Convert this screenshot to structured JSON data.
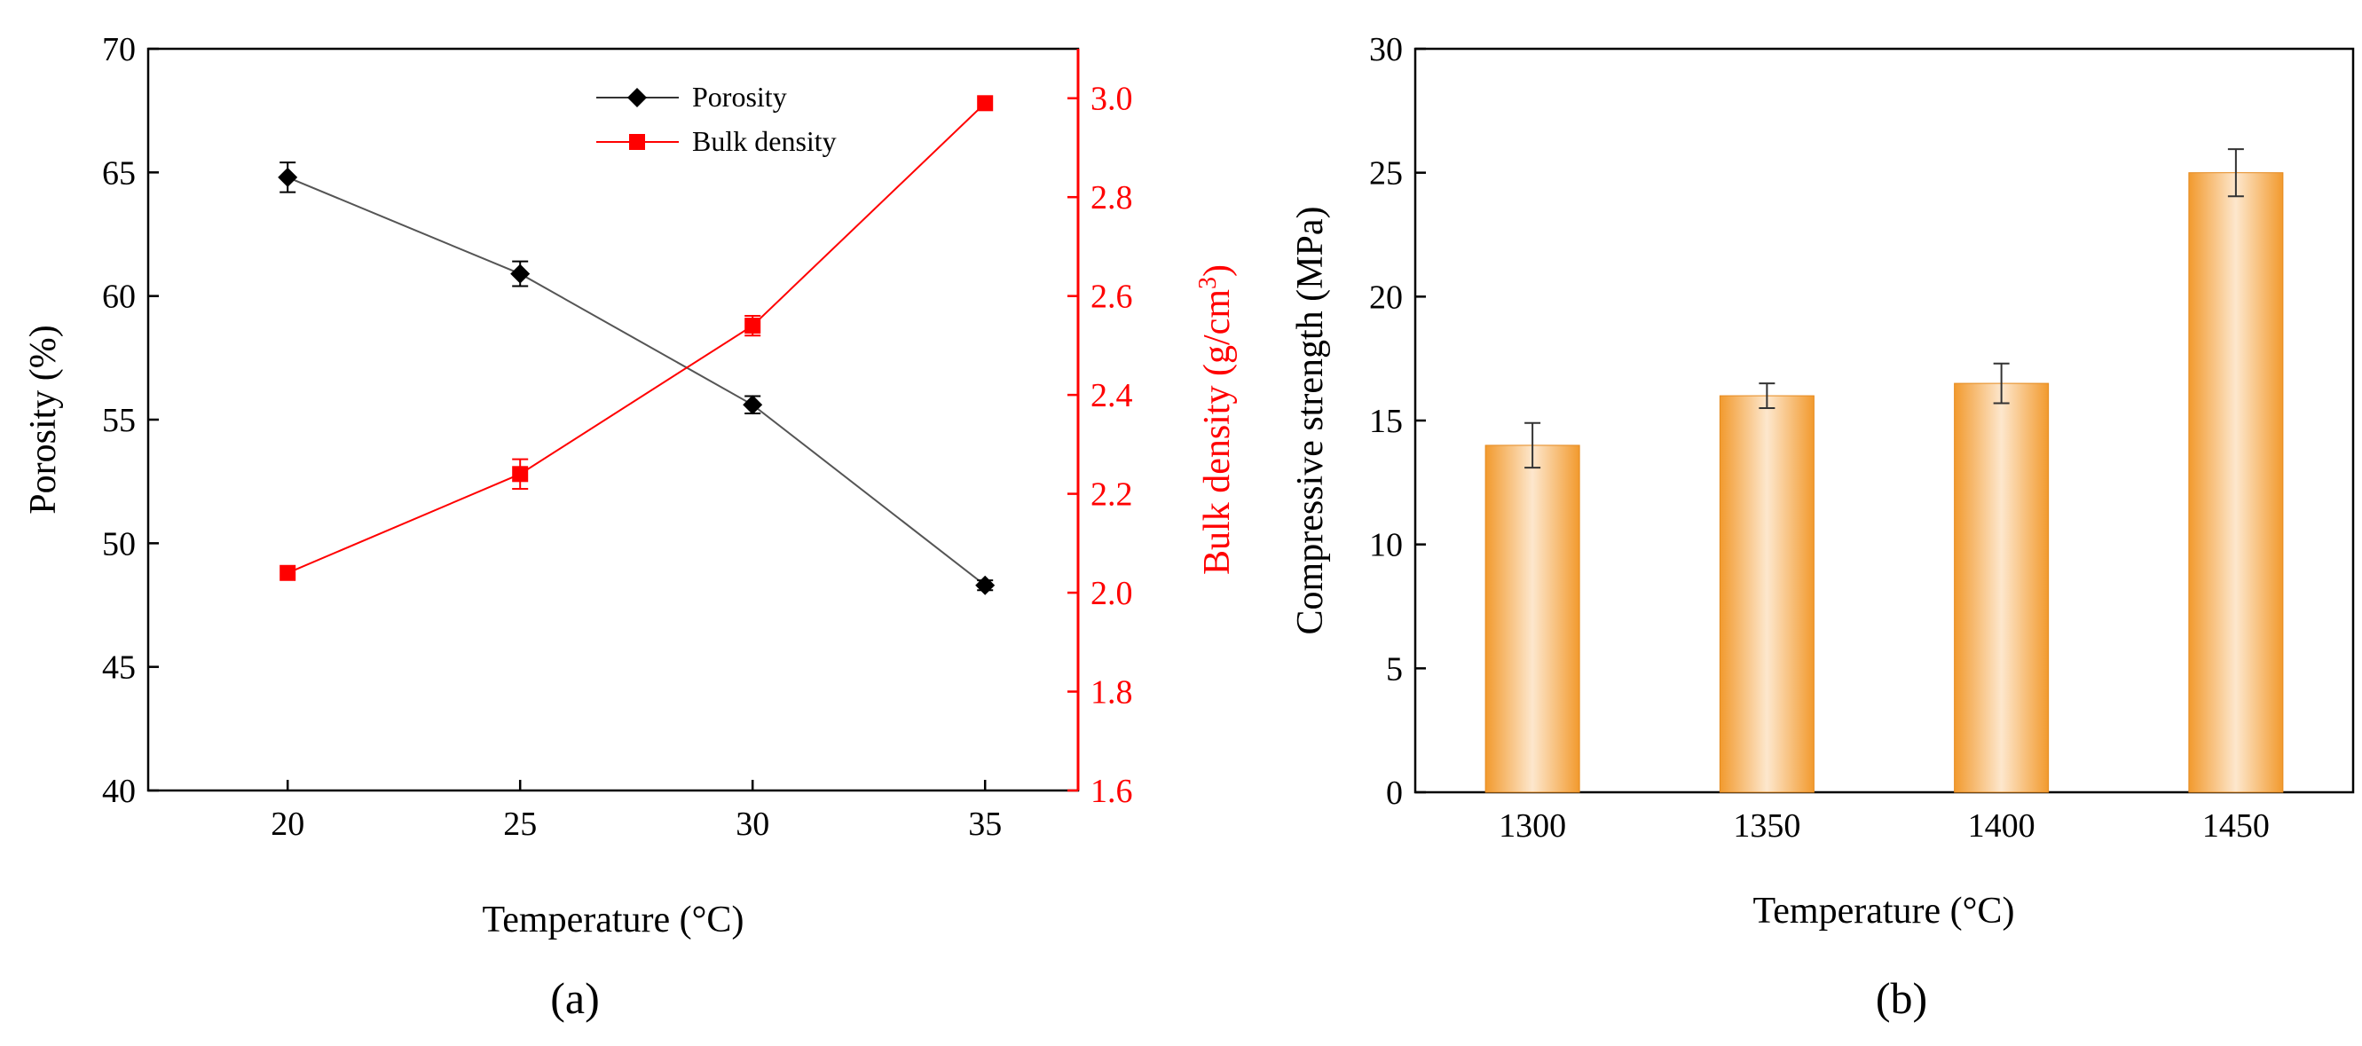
{
  "chart_data": [
    {
      "panel_label": "(a)",
      "type": "line",
      "xlabel": "Temperature (°C)",
      "x": [
        20,
        25,
        30,
        35
      ],
      "xticks": [
        "20",
        "25",
        "30",
        "35"
      ],
      "xlim": [
        17,
        37
      ],
      "y_left": {
        "label": "Porosity (%)",
        "ylim": [
          40,
          70
        ],
        "ticks": [
          "40",
          "45",
          "50",
          "55",
          "60",
          "65",
          "70"
        ]
      },
      "y_right": {
        "label_main": "Bulk density (g/cm",
        "label_sup": "3",
        "label_close": ")",
        "ylim": [
          1.6,
          3.1
        ],
        "ticks": [
          "1.6",
          "1.8",
          "2.0",
          "2.2",
          "2.4",
          "2.6",
          "2.8",
          "3.0"
        ]
      },
      "series": [
        {
          "name": "Porosity",
          "axis": "left",
          "marker": "diamond",
          "color": "#000000",
          "line_color": "#555555",
          "values": [
            64.8,
            60.9,
            55.6,
            48.3
          ],
          "errors": [
            0.6,
            0.5,
            0.35,
            0.2
          ]
        },
        {
          "name": "Bulk density",
          "axis": "right",
          "marker": "square",
          "color": "#ff0000",
          "line_color": "#ff0000",
          "values": [
            2.04,
            2.24,
            2.54,
            2.99
          ],
          "errors": [
            0.0,
            0.03,
            0.02,
            0.0
          ]
        }
      ],
      "legend_position": "top-center"
    },
    {
      "panel_label": "(b)",
      "type": "bar",
      "xlabel": "Temperature (°C)",
      "ylabel": "Compressive strength (MPa)",
      "categories": [
        "1300",
        "1350",
        "1400",
        "1450"
      ],
      "values": [
        14.0,
        16.0,
        16.5,
        25.0
      ],
      "errors": [
        0.9,
        0.5,
        0.8,
        0.95
      ],
      "ylim": [
        0,
        30
      ],
      "yticks": [
        "0",
        "5",
        "10",
        "15",
        "20",
        "25",
        "30"
      ],
      "bar_color": "#f5a53c"
    }
  ]
}
